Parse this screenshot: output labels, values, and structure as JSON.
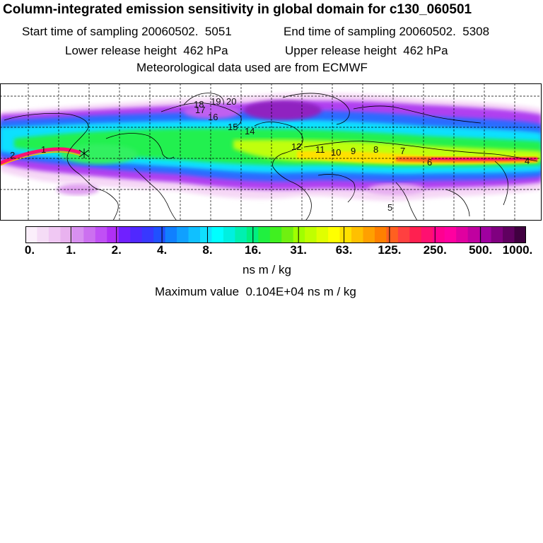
{
  "header": {
    "title": "Column-integrated emission sensitivity in global domain for c130_060501",
    "line2_left": "Start time of sampling 20060502.  5051",
    "line2_right": "End time of sampling 20060502.  5308",
    "line3_left": "Lower release height  462 hPa",
    "line3_right": "Upper release height  462 hPa",
    "line4": "Meteorological data used are from ECMWF"
  },
  "colorbar": {
    "tick_labels": [
      "0.",
      "1.",
      "2.",
      "4.",
      "8.",
      "16.",
      "31.",
      "63.",
      "125.",
      "250.",
      "500.",
      "1000."
    ],
    "colors": [
      "#fbeffb",
      "#f5dcf6",
      "#f0c8f3",
      "#e9b2ef",
      "#d890f0",
      "#cc70f0",
      "#c050f5",
      "#b030f5",
      "#7020ff",
      "#5028ff",
      "#3838ff",
      "#2050ff",
      "#1080ff",
      "#10a0ff",
      "#10c0ff",
      "#10e0ff",
      "#00ffff",
      "#00f0e0",
      "#00f0b0",
      "#00f080",
      "#20f040",
      "#40f020",
      "#70f010",
      "#a0ff00",
      "#c0ff00",
      "#e0ff00",
      "#ffff00",
      "#ffe000",
      "#ffc000",
      "#ffa000",
      "#ff8000",
      "#ff6020",
      "#ff4040",
      "#ff2050",
      "#ff1070",
      "#ff0090",
      "#ff00a0",
      "#e000a0",
      "#c000a0",
      "#a000a0",
      "#800080",
      "#600060",
      "#400040"
    ],
    "unit": "ns m / kg",
    "max_label": "Maximum value  0.104E+04 ns m / kg"
  },
  "map": {
    "track_labels": [
      "1",
      "2",
      "4",
      "5",
      "6",
      "7",
      "8",
      "9",
      "10",
      "11",
      "12",
      "14",
      "15",
      "16",
      "17",
      "18",
      "19",
      "20"
    ]
  }
}
